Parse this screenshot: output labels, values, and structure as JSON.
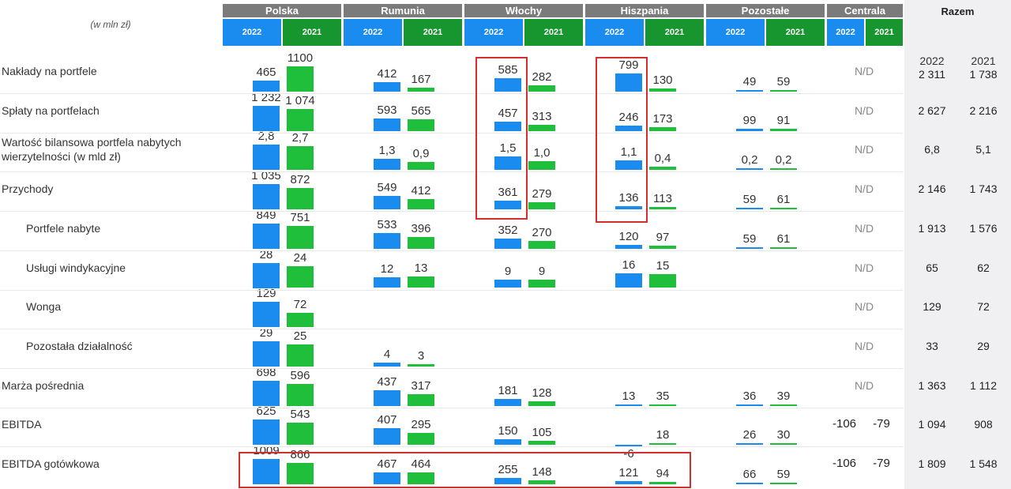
{
  "header": {
    "unit": "(w mln zł)",
    "countries": [
      "Polska",
      "Rumunia",
      "Włochy",
      "Hiszpania",
      "Pozostałe",
      "Centrala"
    ],
    "years": [
      "2022",
      "2021"
    ],
    "total": "Razem"
  },
  "rows": [
    {
      "label": "Nakłady na portfele",
      "cells": [
        [
          465,
          1100
        ],
        [
          412,
          167
        ],
        [
          585,
          282
        ],
        [
          799,
          130
        ],
        [
          49,
          59
        ]
      ],
      "centrala": "N/D",
      "razem": [
        {
          "value": 2311,
          "label": "2 311"
        },
        {
          "value": 1738,
          "label": "1 738"
        }
      ]
    },
    {
      "label": "Spłaty na portfelach",
      "cells": [
        [
          {
            "value": 1232,
            "label": "1 232"
          },
          {
            "value": 1074,
            "label": "1 074"
          }
        ],
        [
          593,
          565
        ],
        [
          457,
          313
        ],
        [
          246,
          173
        ],
        [
          99,
          91
        ]
      ],
      "centrala": "N/D",
      "razem": [
        {
          "value": 2627,
          "label": "2 627"
        },
        {
          "value": 2216,
          "label": "2 216"
        }
      ]
    },
    {
      "label": "Wartość bilansowa portfela nabytych wierzytelności (w mld zł)",
      "cells": [
        [
          {
            "value": 2.8,
            "label": "2,8"
          },
          {
            "value": 2.7,
            "label": "2,7"
          }
        ],
        [
          {
            "value": 1.3,
            "label": "1,3"
          },
          {
            "value": 0.9,
            "label": "0,9"
          }
        ],
        [
          {
            "value": 1.5,
            "label": "1,5"
          },
          {
            "value": 1.0,
            "label": "1,0"
          }
        ],
        [
          {
            "value": 1.1,
            "label": "1,1"
          },
          {
            "value": 0.4,
            "label": "0,4"
          }
        ],
        [
          {
            "value": 0.2,
            "label": "0,2"
          },
          {
            "value": 0.2,
            "label": "0,2"
          }
        ]
      ],
      "centrala": "N/D",
      "razem": [
        {
          "value": 6.8,
          "label": "6,8"
        },
        {
          "value": 5.1,
          "label": "5,1"
        }
      ]
    },
    {
      "label": "Przychody",
      "cells": [
        [
          {
            "value": 1035,
            "label": "1 035"
          },
          872
        ],
        [
          549,
          412
        ],
        [
          361,
          279
        ],
        [
          136,
          113
        ],
        [
          59,
          61
        ]
      ],
      "centrala": "N/D",
      "razem": [
        {
          "value": 2146,
          "label": "2 146"
        },
        {
          "value": 1743,
          "label": "1 743"
        }
      ]
    },
    {
      "label": "Portfele nabyte",
      "cells": [
        [
          849,
          751
        ],
        [
          533,
          396
        ],
        [
          352,
          270
        ],
        [
          120,
          97
        ],
        [
          59,
          61
        ]
      ],
      "centrala": "N/D",
      "razem": [
        {
          "value": 1913,
          "label": "1 913"
        },
        {
          "value": 1576,
          "label": "1 576"
        }
      ]
    },
    {
      "label": "Usługi windykacyjne",
      "cells": [
        [
          28,
          24
        ],
        [
          12,
          13
        ],
        [
          9,
          9
        ],
        [
          16,
          15
        ],
        null
      ],
      "centrala": "N/D",
      "razem": [
        65,
        62
      ]
    },
    {
      "label": "Wonga",
      "cells": [
        [
          129,
          72
        ],
        null,
        null,
        null,
        null
      ],
      "centrala": "N/D",
      "razem": [
        129,
        72
      ]
    },
    {
      "label": "Pozostała działalność",
      "cells": [
        [
          29,
          25
        ],
        [
          4,
          3
        ],
        null,
        null,
        null
      ],
      "centrala": "N/D",
      "razem": [
        33,
        29
      ]
    },
    {
      "label": "Marża pośrednia",
      "cells": [
        [
          698,
          596
        ],
        [
          437,
          317
        ],
        [
          181,
          128
        ],
        [
          13,
          35
        ],
        [
          36,
          39
        ]
      ],
      "centrala": "N/D",
      "razem": [
        {
          "value": 1363,
          "label": "1 363"
        },
        {
          "value": 1112,
          "label": "1 112"
        }
      ]
    },
    {
      "label": "EBITDA",
      "cells": [
        [
          625,
          543
        ],
        [
          407,
          295
        ],
        [
          150,
          105
        ],
        [
          -6,
          18
        ],
        [
          26,
          30
        ]
      ],
      "centrala": [
        -106,
        -79
      ],
      "razem": [
        {
          "value": 1094,
          "label": "1 094"
        },
        908
      ]
    },
    {
      "label": "EBITDA gotówkowa",
      "cells": [
        [
          1009,
          866
        ],
        [
          467,
          464
        ],
        [
          255,
          148
        ],
        [
          121,
          94
        ],
        [
          66,
          59
        ]
      ],
      "centrala": [
        -106,
        -79
      ],
      "razem": [
        {
          "value": 1809,
          "label": "1 809"
        },
        {
          "value": 1548,
          "label": "1 548"
        }
      ]
    }
  ]
}
